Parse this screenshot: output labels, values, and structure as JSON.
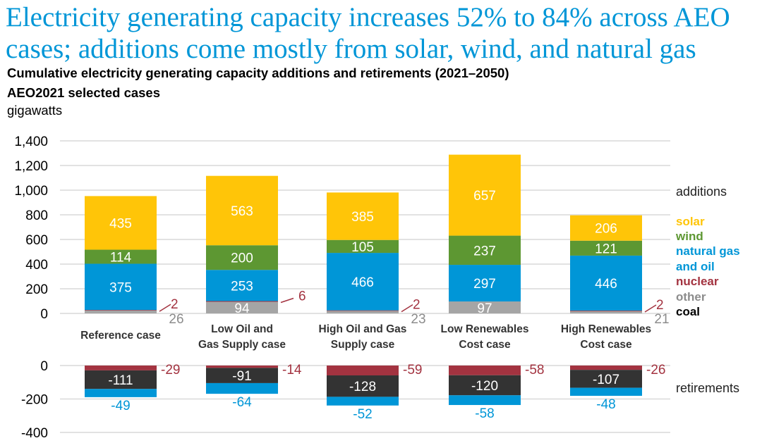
{
  "headline": {
    "line1": "Electricity generating capacity increases 52% to 84% across AEO",
    "line2": "cases; additions come mostly from solar, wind, and natural gas"
  },
  "subtitle": {
    "line1": "Cumulative electricity generating capacity additions and retirements (2021–2050)",
    "line2": "AEO2021 selected cases"
  },
  "units": "gigawatts",
  "colors": {
    "solar": "#ffc508",
    "wind": "#5d9732",
    "natural_gas_and_oil": "#0096d7",
    "nuclear": "#a33340",
    "other": "#a5a5a5",
    "coal": "#333333",
    "headline": "#0096d7",
    "grid": "#d9d9d9"
  },
  "chart_data": [
    {
      "type": "bar",
      "stacked": true,
      "title": "additions",
      "xlabel": "",
      "ylabel": "gigawatts",
      "ylim": [
        0,
        1400
      ],
      "yticks": [
        0,
        200,
        400,
        600,
        800,
        1000,
        1200,
        1400
      ],
      "ytick_labels": [
        "0",
        "200",
        "400",
        "600",
        "800",
        "1,000",
        "1,200",
        "1,400"
      ],
      "grid": true,
      "categories": [
        [
          "Reference case"
        ],
        [
          "Low Oil and",
          "Gas Supply case"
        ],
        [
          "High Oil and Gas",
          "Supply case"
        ],
        [
          "Low Renewables",
          "Cost case"
        ],
        [
          "High Renewables",
          "Cost case"
        ]
      ],
      "series": [
        {
          "name": "other",
          "key": "other",
          "values": [
            26,
            94,
            23,
            97,
            21
          ]
        },
        {
          "name": "nuclear",
          "key": "nuclear",
          "values": [
            2,
            6,
            2,
            0,
            2
          ]
        },
        {
          "name": "natural gas and oil",
          "key": "natural_gas_and_oil",
          "values": [
            375,
            253,
            466,
            297,
            446
          ]
        },
        {
          "name": "wind",
          "key": "wind",
          "values": [
            114,
            200,
            105,
            237,
            121
          ]
        },
        {
          "name": "solar",
          "key": "solar",
          "values": [
            435,
            563,
            385,
            657,
            206
          ]
        }
      ],
      "data_labels": {
        "other": [
          "26",
          "94",
          "23",
          "97",
          "21"
        ],
        "nuclear": [
          "2",
          "6",
          "2",
          "",
          "2"
        ],
        "natural_gas_and_oil": [
          "375",
          "253",
          "466",
          "297",
          "446"
        ],
        "wind": [
          "114",
          "200",
          "105",
          "237",
          "121"
        ],
        "solar": [
          "435",
          "563",
          "385",
          "657",
          "206"
        ]
      },
      "legend_position": "right"
    },
    {
      "type": "bar",
      "stacked": true,
      "title": "retirements",
      "ylim": [
        -400,
        0
      ],
      "yticks": [
        0,
        -200,
        -400
      ],
      "ytick_labels": [
        "0",
        "-200",
        "-400"
      ],
      "grid": true,
      "categories": [
        "Reference case",
        "Low Oil and Gas Supply case",
        "High Oil and Gas Supply case",
        "Low Renewables Cost case",
        "High Renewables Cost case"
      ],
      "series": [
        {
          "name": "nuclear",
          "key": "nuclear",
          "values": [
            -29,
            -14,
            -59,
            -58,
            -26
          ]
        },
        {
          "name": "coal",
          "key": "coal",
          "values": [
            -111,
            -91,
            -128,
            -120,
            -107
          ]
        },
        {
          "name": "natural gas and oil",
          "key": "natural_gas_and_oil",
          "values": [
            -49,
            -64,
            -52,
            -58,
            -48
          ]
        }
      ],
      "data_labels": {
        "nuclear": [
          "-29",
          "-14",
          "-59",
          "-58",
          "-26"
        ],
        "coal": [
          "-111",
          "-91",
          "-128",
          "-120",
          "-107"
        ],
        "natural_gas_and_oil": [
          "-49",
          "-64",
          "-52",
          "-58",
          "-48"
        ]
      }
    }
  ],
  "legend": {
    "additions_label": "additions",
    "retirements_label": "retirements",
    "items": [
      {
        "label": "solar",
        "key": "solar"
      },
      {
        "label": "wind",
        "key": "wind"
      },
      {
        "label": "natural gas",
        "key": "natural_gas_and_oil"
      },
      {
        "label": "and oil",
        "key": "natural_gas_and_oil"
      },
      {
        "label": "nuclear",
        "key": "nuclear"
      },
      {
        "label": "other",
        "key": "other_text"
      },
      {
        "label": "coal",
        "key": "coal_text"
      }
    ],
    "text_colors": {
      "solar": "#ffc508",
      "wind": "#5d9732",
      "natural_gas_and_oil": "#0096d7",
      "nuclear": "#a33340",
      "other_text": "#8c8c8c",
      "coal_text": "#000000"
    }
  }
}
